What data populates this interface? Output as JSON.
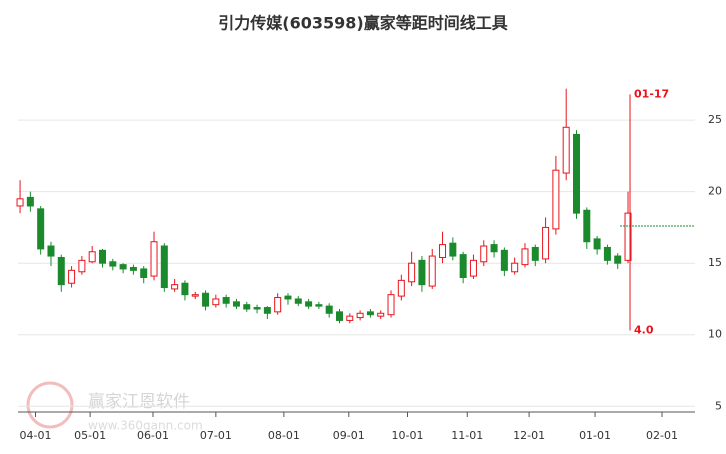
{
  "chart_data": {
    "type": "candlestick",
    "title": "引力传媒(603598)赢家等距时间线工具",
    "watermark": {
      "brand": "赢家江恩软件",
      "url": "www.360gann.com"
    },
    "up_color": "#e8141c",
    "down_color": "#1a8a2c",
    "open": [
      19,
      19.6,
      18.8,
      16.2,
      15.4,
      13.6,
      14.4,
      15.1,
      15.9,
      15.1,
      14.9,
      14.7,
      14.6,
      14.1,
      16.2,
      13.2,
      13.6,
      12.7,
      12.9,
      12.1,
      12.6,
      12.3,
      12.1,
      11.9,
      11.9,
      11.6,
      12.7,
      12.5,
      12.3,
      12.1,
      12,
      11.6,
      11,
      11.2,
      11.6,
      11.3,
      11.4,
      12.7,
      13.7,
      15.2,
      13.4,
      15.4,
      16.4,
      15.6,
      14.1,
      15.1,
      16.3,
      15.9,
      14.4,
      14.9,
      16.1,
      15.3,
      17.4,
      21.3,
      24,
      18.7,
      16.7,
      16.1,
      15.5,
      15.2
    ],
    "high": [
      20.8,
      20,
      19,
      16.5,
      15.6,
      14.8,
      15.5,
      16.2,
      16,
      15.3,
      15,
      14.9,
      14.8,
      17.2,
      16.4,
      13.9,
      13.8,
      13,
      13.1,
      12.8,
      12.8,
      12.5,
      12.3,
      12.1,
      12,
      12.9,
      12.9,
      12.7,
      12.5,
      12.3,
      12.2,
      11.8,
      11.5,
      11.7,
      11.8,
      11.7,
      13.1,
      14.2,
      15.8,
      15.5,
      16,
      17.2,
      16.8,
      15.8,
      15.6,
      16.6,
      16.6,
      16.1,
      15.4,
      16.4,
      16.3,
      18.2,
      22.5,
      27.2,
      24.3,
      18.9,
      16.9,
      16.3,
      15.7,
      20
    ],
    "low": [
      18.5,
      18.6,
      15.6,
      14.8,
      13,
      13.3,
      14.2,
      15,
      14.7,
      14.5,
      14.3,
      14.2,
      13.6,
      13.8,
      13,
      13,
      12.4,
      12.5,
      11.7,
      11.9,
      11.9,
      11.8,
      11.6,
      11.5,
      11.1,
      11.4,
      12.1,
      12,
      11.8,
      11.8,
      11.2,
      10.8,
      10.8,
      11,
      11.2,
      11.1,
      11.2,
      12.4,
      13.4,
      13,
      13.2,
      15,
      15.2,
      13.6,
      13.9,
      14.8,
      15.4,
      14.1,
      14.2,
      14.7,
      14.8,
      15,
      17,
      20.8,
      18.1,
      16,
      15.6,
      14.9,
      14.6,
      15
    ],
    "close": [
      19.5,
      19,
      16,
      15.5,
      13.5,
      14.5,
      15.2,
      15.8,
      15,
      14.8,
      14.6,
      14.5,
      14,
      16.5,
      13.3,
      13.5,
      12.8,
      12.8,
      12,
      12.5,
      12.2,
      12,
      11.8,
      11.8,
      11.5,
      12.6,
      12.5,
      12.2,
      12,
      12,
      11.5,
      11,
      11.3,
      11.5,
      11.4,
      11.5,
      12.8,
      13.8,
      15,
      13.5,
      15.5,
      16.3,
      15.5,
      14,
      15.2,
      16.2,
      15.8,
      14.5,
      15,
      16,
      15.2,
      17.5,
      21.5,
      24.5,
      18.5,
      16.5,
      16,
      15.2,
      15,
      18.5
    ],
    "xlim": [
      -0.2,
      65.5
    ],
    "xticks": [
      {
        "value": 1.5,
        "label": "04-01"
      },
      {
        "value": 6.8,
        "label": "05-01"
      },
      {
        "value": 12.9,
        "label": "06-01"
      },
      {
        "value": 19.0,
        "label": "07-01"
      },
      {
        "value": 25.6,
        "label": "08-01"
      },
      {
        "value": 31.9,
        "label": "09-01"
      },
      {
        "value": 37.6,
        "label": "10-01"
      },
      {
        "value": 43.4,
        "label": "11-01"
      },
      {
        "value": 49.4,
        "label": "12-01"
      },
      {
        "value": 55.8,
        "label": "01-01"
      },
      {
        "value": 62.3,
        "label": "02-01"
      }
    ],
    "ylim": [
      4.6,
      30.6
    ],
    "yticks": [
      5,
      10,
      15,
      20,
      25
    ],
    "grid": true,
    "marker": {
      "date": "01-17",
      "top": 26.8,
      "bottom": 10.3,
      "label": "4.0",
      "color": "#e8141c"
    },
    "level": {
      "value": 17.6,
      "color": "#1a8a2c"
    }
  }
}
